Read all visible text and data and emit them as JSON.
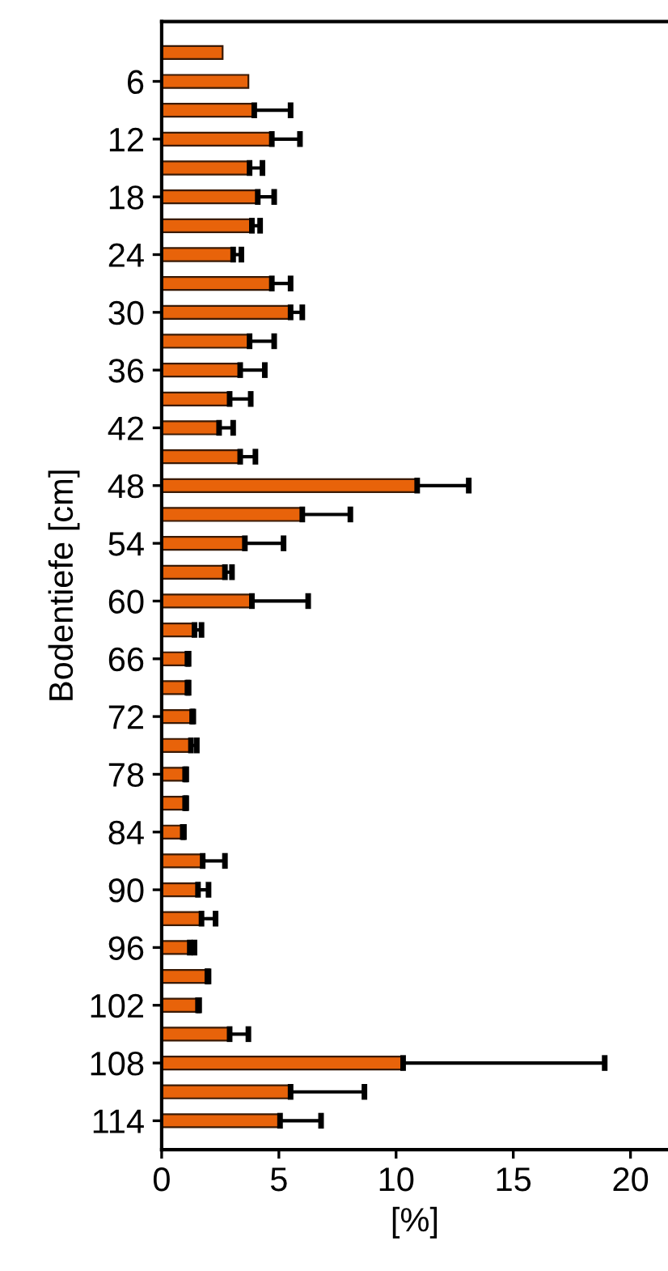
{
  "chart_data": {
    "type": "bar",
    "orientation": "horizontal",
    "xlabel": "[%]",
    "ylabel": "Bodentiefe [cm]",
    "categories": [
      null,
      "6",
      null,
      "12",
      null,
      "18",
      null,
      "24",
      null,
      "30",
      null,
      "36",
      null,
      "42",
      null,
      "48",
      null,
      "54",
      null,
      "60",
      null,
      "66",
      null,
      "72",
      null,
      "78",
      null,
      "84",
      null,
      "90",
      null,
      "96",
      null,
      "102",
      null,
      "108",
      null,
      "114"
    ],
    "values": [
      2.6,
      3.7,
      3.95,
      4.7,
      3.75,
      4.1,
      3.85,
      3.05,
      4.7,
      5.5,
      3.75,
      3.35,
      2.9,
      2.45,
      3.35,
      10.9,
      6.0,
      3.55,
      2.7,
      3.85,
      1.4,
      1.1,
      1.1,
      1.3,
      1.25,
      1.0,
      1.0,
      0.9,
      1.75,
      1.55,
      1.7,
      1.2,
      1.95,
      1.55,
      2.9,
      10.3,
      5.5,
      5.05
    ],
    "errors": [
      null,
      null,
      [
        3.95,
        5.5
      ],
      [
        4.7,
        5.9
      ],
      [
        3.75,
        4.3
      ],
      [
        4.1,
        4.8
      ],
      [
        3.85,
        4.2
      ],
      [
        3.05,
        3.4
      ],
      [
        4.7,
        5.5
      ],
      [
        5.5,
        6.0
      ],
      [
        3.75,
        4.8
      ],
      [
        3.35,
        4.4
      ],
      [
        2.9,
        3.8
      ],
      [
        2.45,
        3.05
      ],
      [
        3.35,
        4.0
      ],
      [
        10.9,
        13.1
      ],
      [
        6.0,
        8.05
      ],
      [
        3.55,
        5.2
      ],
      [
        2.7,
        3.0
      ],
      [
        3.85,
        6.25
      ],
      [
        1.4,
        1.7
      ],
      [
        1.1,
        1.15
      ],
      [
        1.1,
        1.15
      ],
      [
        1.3,
        1.35
      ],
      [
        1.25,
        1.5
      ],
      [
        1.0,
        1.05
      ],
      [
        1.0,
        1.05
      ],
      [
        0.9,
        0.95
      ],
      [
        1.75,
        2.7
      ],
      [
        1.55,
        2.0
      ],
      [
        1.7,
        2.3
      ],
      [
        1.2,
        1.4
      ],
      [
        1.95,
        2.0
      ],
      [
        1.55,
        1.6
      ],
      [
        2.9,
        3.7
      ],
      [
        10.3,
        18.9
      ],
      [
        5.5,
        8.65
      ],
      [
        5.05,
        6.8
      ]
    ],
    "color": "#e8630a",
    "xlim": [
      0,
      21.6
    ],
    "xticks": [
      0,
      5,
      10,
      15,
      20
    ],
    "grid": false,
    "legend": false
  }
}
